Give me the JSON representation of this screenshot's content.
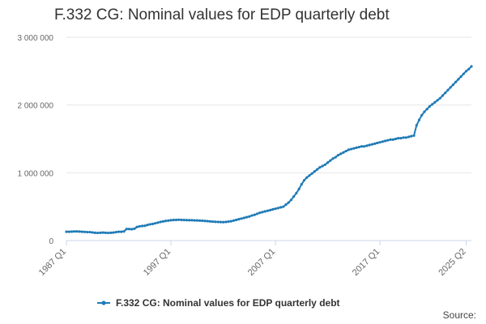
{
  "title": "F.332 CG: Nominal values for EDP quarterly debt",
  "source_label": "Source:",
  "colors": {
    "series": "#1f7bb6",
    "grid": "#e6e6e6",
    "axis": "#ccd6eb"
  },
  "chart_data": {
    "type": "line",
    "title": "F.332 CG: Nominal values for EDP quarterly debt",
    "xlabel": "",
    "ylabel": "",
    "x_range": [
      "1987 Q1",
      "2025 Q2"
    ],
    "ylim": [
      0,
      3000000
    ],
    "y_ticks": [
      0,
      1000000,
      2000000,
      3000000
    ],
    "y_tick_labels": [
      "0",
      "1 000 000",
      "2 000 000",
      "3 000 000"
    ],
    "x_tick_labels": [
      "1987 Q1",
      "1997 Q1",
      "2007 Q1",
      "2017 Q1",
      "2025 Q2"
    ],
    "grid": true,
    "legend_position": "bottom",
    "series": [
      {
        "name": "F.332 CG: Nominal values for EDP quarterly debt",
        "values": [
          130000,
          130000,
          132000,
          135000,
          135000,
          133000,
          130000,
          128000,
          125000,
          125000,
          120000,
          115000,
          113000,
          115000,
          118000,
          115000,
          113000,
          115000,
          118000,
          125000,
          130000,
          130000,
          135000,
          170000,
          170000,
          168000,
          175000,
          200000,
          210000,
          215000,
          218000,
          230000,
          240000,
          245000,
          255000,
          265000,
          275000,
          282000,
          290000,
          295000,
          300000,
          303000,
          305000,
          307000,
          305000,
          303000,
          302000,
          300000,
          300000,
          298000,
          297000,
          295000,
          293000,
          290000,
          287000,
          283000,
          280000,
          277000,
          275000,
          273000,
          272000,
          275000,
          280000,
          285000,
          295000,
          305000,
          315000,
          325000,
          335000,
          345000,
          355000,
          370000,
          380000,
          395000,
          410000,
          420000,
          430000,
          440000,
          450000,
          460000,
          470000,
          480000,
          490000,
          500000,
          530000,
          560000,
          600000,
          650000,
          700000,
          760000,
          830000,
          890000,
          930000,
          960000,
          990000,
          1020000,
          1050000,
          1080000,
          1100000,
          1120000,
          1150000,
          1180000,
          1210000,
          1230000,
          1260000,
          1280000,
          1300000,
          1320000,
          1340000,
          1350000,
          1360000,
          1370000,
          1380000,
          1390000,
          1390000,
          1400000,
          1410000,
          1420000,
          1430000,
          1440000,
          1450000,
          1460000,
          1470000,
          1480000,
          1490000,
          1490000,
          1500000,
          1510000,
          1510000,
          1520000,
          1520000,
          1530000,
          1540000,
          1550000,
          1700000,
          1780000,
          1850000,
          1900000,
          1940000,
          1980000,
          2010000,
          2040000,
          2070000,
          2100000,
          2140000,
          2180000,
          2220000,
          2260000,
          2300000,
          2340000,
          2380000,
          2420000,
          2460000,
          2500000,
          2530000,
          2570000
        ]
      }
    ]
  }
}
